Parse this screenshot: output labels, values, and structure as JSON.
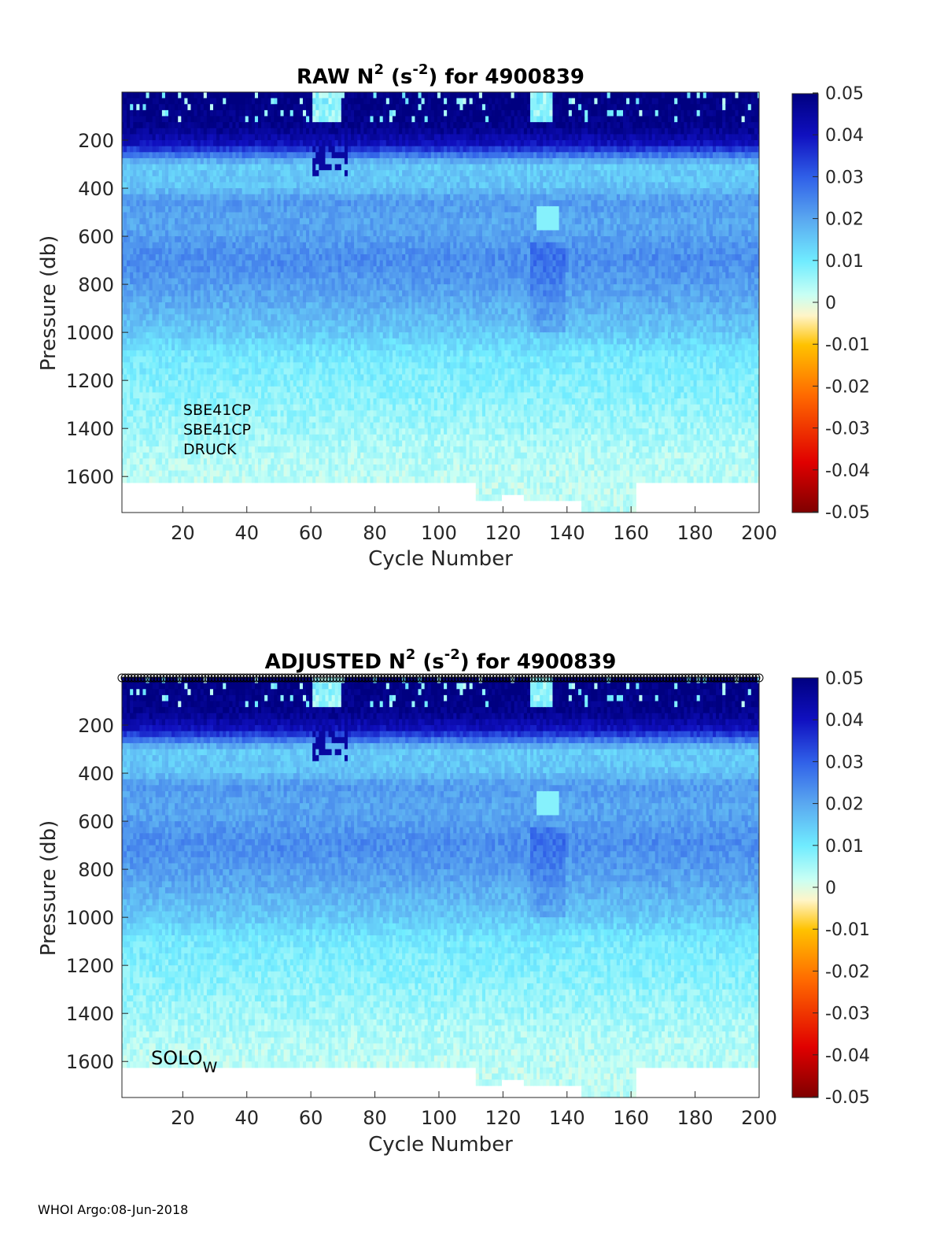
{
  "footer": "WHOI Argo:08-Jun-2018",
  "colorbar": {
    "ticks": [
      "0.05",
      "0.04",
      "0.03",
      "0.02",
      "0.01",
      "0",
      "-0.01",
      "-0.02",
      "-0.03",
      "-0.04",
      "-0.05"
    ],
    "range": [
      -0.05,
      0.05
    ],
    "colormap": "blue-to-red diverging",
    "colors": [
      "#7f0000",
      "#e00000",
      "#ff6a00",
      "#ffc200",
      "#fff5c8",
      "#c8fff4",
      "#70ecff",
      "#5aa8f0",
      "#3060e8",
      "#1010c0",
      "#000080"
    ]
  },
  "chart_data": [
    {
      "type": "heatmap",
      "title_main": "RAW N",
      "title_sup1": "2",
      "title_mid": " (s",
      "title_sup2": "-2",
      "title_end": ") for 4900839",
      "xlabel": "Cycle Number",
      "ylabel": "Pressure (db)",
      "xlim": [
        1,
        200
      ],
      "ylim": [
        1750,
        0
      ],
      "xticks": [
        "20",
        "40",
        "60",
        "80",
        "100",
        "120",
        "140",
        "160",
        "180",
        "200"
      ],
      "yticks": [
        "200",
        "400",
        "600",
        "800",
        "1000",
        "1200",
        "1400",
        "1600"
      ],
      "value_profile": {
        "pressure": [
          25,
          150,
          220,
          300,
          400,
          450,
          550,
          700,
          850,
          1000,
          1100,
          1300,
          1500,
          1620
        ],
        "n2": [
          0.05,
          0.048,
          0.04,
          0.015,
          0.016,
          0.022,
          0.02,
          0.024,
          0.02,
          0.015,
          0.01,
          0.007,
          0.004,
          0.003
        ]
      },
      "annotations": [
        "SBE41CP",
        "SBE41CP",
        "DRUCK"
      ]
    },
    {
      "type": "heatmap",
      "title_main": "ADJUSTED N",
      "title_sup1": "2",
      "title_mid": " (s",
      "title_sup2": "-2",
      "title_end": ") for 4900839",
      "xlabel": "Cycle Number",
      "ylabel": "Pressure (db)",
      "xlim": [
        1,
        200
      ],
      "ylim": [
        1750,
        0
      ],
      "xticks": [
        "20",
        "40",
        "60",
        "80",
        "100",
        "120",
        "140",
        "160",
        "180",
        "200"
      ],
      "yticks": [
        "200",
        "400",
        "600",
        "800",
        "1000",
        "1200",
        "1400",
        "1600"
      ],
      "value_profile": {
        "pressure": [
          25,
          150,
          220,
          300,
          400,
          450,
          550,
          700,
          850,
          1000,
          1100,
          1300,
          1500,
          1620
        ],
        "n2": [
          0.05,
          0.048,
          0.04,
          0.015,
          0.016,
          0.022,
          0.02,
          0.024,
          0.02,
          0.015,
          0.01,
          0.007,
          0.004,
          0.003
        ]
      },
      "float_type": "SOLO",
      "float_type_sub": "W"
    }
  ]
}
